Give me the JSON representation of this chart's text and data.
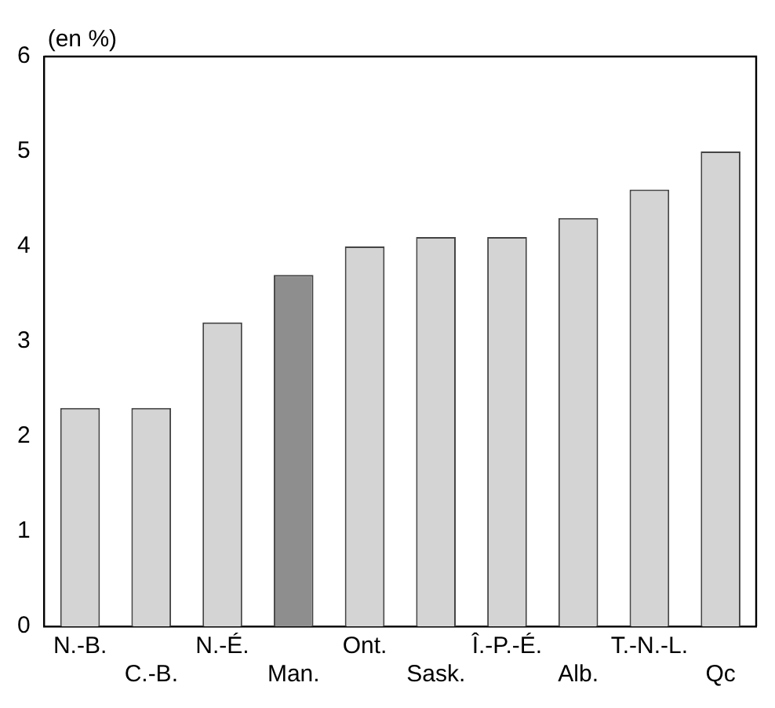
{
  "chart_data": {
    "type": "bar",
    "ylabel": "(en %)",
    "categories": [
      "N.-B.",
      "C.-B.",
      "N.-É.",
      "Man.",
      "Ont.",
      "Sask.",
      "Î.-P.-É.",
      "Alb.",
      "T.-N.-L.",
      "Qc"
    ],
    "values": [
      2.3,
      2.3,
      3.2,
      3.7,
      4.0,
      4.1,
      4.1,
      4.3,
      4.6,
      5.0
    ],
    "colors": [
      "#d4d4d4",
      "#d4d4d4",
      "#d4d4d4",
      "#8e8e8e",
      "#d4d4d4",
      "#d4d4d4",
      "#d4d4d4",
      "#d4d4d4",
      "#d4d4d4",
      "#d4d4d4"
    ],
    "ylim": [
      0,
      6
    ],
    "yticks": [
      0,
      1,
      2,
      3,
      4,
      5,
      6
    ],
    "grid": false,
    "legend": false
  }
}
